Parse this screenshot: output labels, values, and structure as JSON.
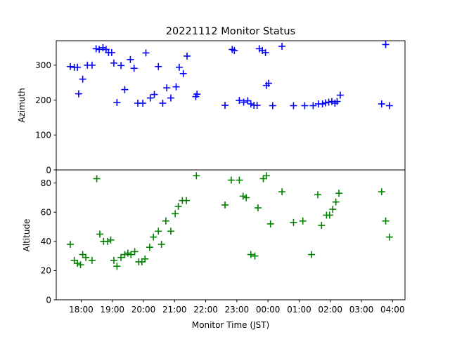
{
  "chart_data": {
    "type": "scatter",
    "title": "20221112 Monitor Status",
    "xlabel": "Monitor Time (JST)",
    "x_tick_labels": [
      "18:00",
      "19:00",
      "20:00",
      "21:00",
      "22:00",
      "23:00",
      "00:00",
      "01:00",
      "02:00",
      "03:00",
      "04:00"
    ],
    "x_range_hours": [
      17.2,
      28.4
    ],
    "panels": [
      {
        "name": "azimuth",
        "ylabel": "Azimuth",
        "ylim": [
          0,
          370
        ],
        "yticks": [
          0,
          100,
          200,
          300
        ],
        "color": "#0000ff",
        "points": [
          [
            17.65,
            296
          ],
          [
            17.78,
            294
          ],
          [
            17.88,
            294
          ],
          [
            17.92,
            218
          ],
          [
            18.05,
            260
          ],
          [
            18.2,
            300
          ],
          [
            18.35,
            300
          ],
          [
            18.48,
            347
          ],
          [
            18.58,
            345
          ],
          [
            18.7,
            350
          ],
          [
            18.8,
            345
          ],
          [
            18.88,
            336
          ],
          [
            18.98,
            336
          ],
          [
            19.05,
            306
          ],
          [
            19.15,
            193
          ],
          [
            19.28,
            299
          ],
          [
            19.4,
            230
          ],
          [
            19.58,
            316
          ],
          [
            19.7,
            291
          ],
          [
            19.82,
            191
          ],
          [
            19.98,
            191
          ],
          [
            20.08,
            335
          ],
          [
            20.22,
            206
          ],
          [
            20.35,
            216
          ],
          [
            20.48,
            296
          ],
          [
            20.62,
            191
          ],
          [
            20.75,
            235
          ],
          [
            20.88,
            206
          ],
          [
            21.05,
            238
          ],
          [
            21.15,
            294
          ],
          [
            21.28,
            276
          ],
          [
            21.4,
            326
          ],
          [
            21.68,
            210
          ],
          [
            21.72,
            217
          ],
          [
            22.62,
            185
          ],
          [
            22.85,
            345
          ],
          [
            22.92,
            342
          ],
          [
            23.08,
            199
          ],
          [
            23.22,
            194
          ],
          [
            23.35,
            198
          ],
          [
            23.45,
            189
          ],
          [
            23.55,
            185
          ],
          [
            23.65,
            185
          ],
          [
            23.72,
            347
          ],
          [
            23.82,
            342
          ],
          [
            23.92,
            336
          ],
          [
            23.95,
            242
          ],
          [
            24.02,
            248
          ],
          [
            24.15,
            184
          ],
          [
            24.45,
            354
          ],
          [
            24.82,
            184
          ],
          [
            25.18,
            184
          ],
          [
            25.45,
            184
          ],
          [
            25.62,
            189
          ],
          [
            25.75,
            189
          ],
          [
            25.85,
            192
          ],
          [
            25.95,
            194
          ],
          [
            26.05,
            196
          ],
          [
            26.15,
            191
          ],
          [
            26.22,
            196
          ],
          [
            26.32,
            214
          ],
          [
            27.65,
            189
          ],
          [
            27.78,
            359
          ],
          [
            27.9,
            184
          ]
        ]
      },
      {
        "name": "altitude",
        "ylabel": "Altitude",
        "ylim": [
          0,
          89
        ],
        "yticks": [
          0,
          20,
          40,
          60,
          80
        ],
        "color": "#008000",
        "points": [
          [
            17.65,
            38
          ],
          [
            17.78,
            27
          ],
          [
            17.88,
            25
          ],
          [
            17.98,
            24
          ],
          [
            18.05,
            31
          ],
          [
            18.15,
            29
          ],
          [
            18.35,
            27
          ],
          [
            18.5,
            83
          ],
          [
            18.6,
            45
          ],
          [
            18.72,
            40
          ],
          [
            18.85,
            40
          ],
          [
            18.95,
            41
          ],
          [
            19.05,
            27
          ],
          [
            19.15,
            23
          ],
          [
            19.28,
            29
          ],
          [
            19.4,
            31
          ],
          [
            19.5,
            32
          ],
          [
            19.6,
            31
          ],
          [
            19.72,
            33
          ],
          [
            19.85,
            26
          ],
          [
            19.95,
            26
          ],
          [
            20.05,
            28
          ],
          [
            20.2,
            36
          ],
          [
            20.32,
            43
          ],
          [
            20.48,
            47
          ],
          [
            20.58,
            38
          ],
          [
            20.72,
            54
          ],
          [
            20.88,
            47
          ],
          [
            21.02,
            59
          ],
          [
            21.12,
            64
          ],
          [
            21.25,
            68
          ],
          [
            21.38,
            68
          ],
          [
            21.7,
            85
          ],
          [
            22.62,
            65
          ],
          [
            22.82,
            82
          ],
          [
            23.08,
            82
          ],
          [
            23.2,
            71
          ],
          [
            23.3,
            70
          ],
          [
            23.45,
            31
          ],
          [
            23.58,
            30
          ],
          [
            23.68,
            63
          ],
          [
            23.85,
            83
          ],
          [
            23.95,
            85
          ],
          [
            24.08,
            52
          ],
          [
            24.45,
            74
          ],
          [
            24.82,
            53
          ],
          [
            25.12,
            54
          ],
          [
            25.4,
            31
          ],
          [
            25.6,
            72
          ],
          [
            25.72,
            51
          ],
          [
            25.88,
            58
          ],
          [
            25.98,
            58
          ],
          [
            26.08,
            62
          ],
          [
            26.18,
            67
          ],
          [
            26.28,
            73
          ],
          [
            27.65,
            74
          ],
          [
            27.78,
            54
          ],
          [
            27.9,
            43
          ]
        ]
      }
    ]
  }
}
